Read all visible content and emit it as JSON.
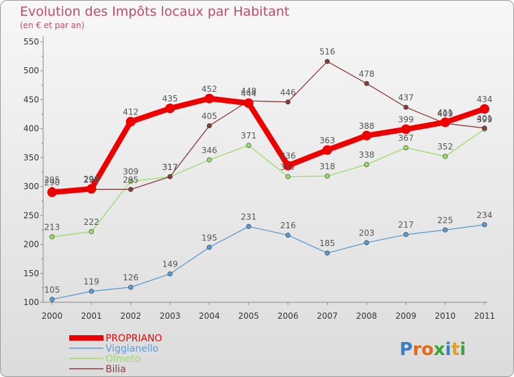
{
  "chart_data": {
    "type": "line",
    "title": "Evolution des Impôts locaux par Habitant",
    "subtitle": "(en € et par an)",
    "categories": [
      "2000",
      "2001",
      "2002",
      "2003",
      "2004",
      "2005",
      "2006",
      "2007",
      "2008",
      "2009",
      "2010",
      "2011"
    ],
    "ylim": [
      100,
      550
    ],
    "yticks": [
      100,
      150,
      200,
      250,
      300,
      350,
      400,
      450,
      500,
      550
    ],
    "grid": false,
    "legend_position": "bottom-left",
    "series": [
      {
        "name": "PROPRIANO",
        "color": "#ee0000",
        "values": [
          290,
          296,
          412,
          435,
          452,
          444,
          336,
          363,
          388,
          399,
          411,
          434
        ]
      },
      {
        "name": "Viggianello",
        "color": "#5b9bd5",
        "values": [
          105,
          119,
          126,
          149,
          195,
          231,
          216,
          185,
          203,
          217,
          225,
          234
        ]
      },
      {
        "name": "Olmeto",
        "color": "#99dd66",
        "values": [
          213,
          222,
          309,
          317,
          346,
          371,
          317,
          318,
          338,
          367,
          352,
          399
        ]
      },
      {
        "name": "Bilia",
        "color": "#8b3a3a",
        "values": [
          295,
          295,
          295,
          317,
          405,
          448,
          446,
          516,
          478,
          437,
          409,
          401
        ]
      }
    ]
  },
  "logo": {
    "text": "Proxiti",
    "colors": [
      "#3a7fc1",
      "#e06a1e",
      "#e06a1e",
      "#3aa63a",
      "#3a7fc1",
      "#e0a01e",
      "#3aa63a"
    ]
  }
}
